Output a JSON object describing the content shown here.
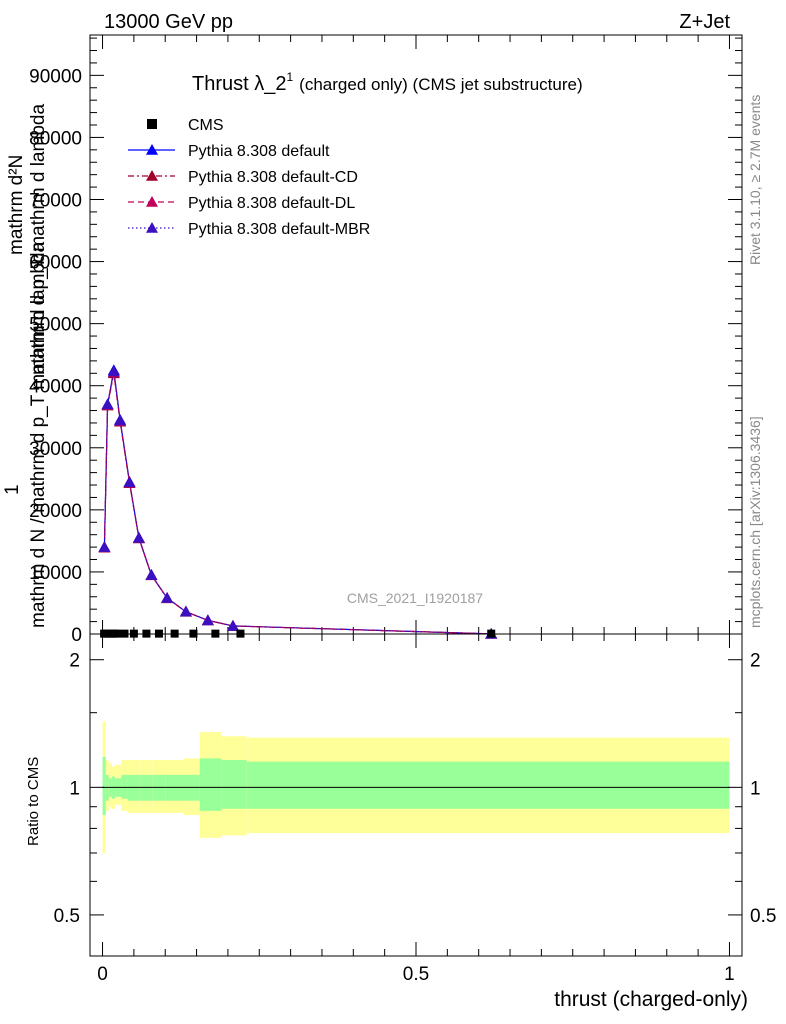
{
  "header": {
    "energy": "13000 GeV pp",
    "process": "Z+Jet"
  },
  "side_labels": {
    "rivet": "Rivet 3.1.10, ≥ 2.7M events",
    "mcplots": "mcplots.cern.ch [arXiv:1306.3436]"
  },
  "watermark": "CMS_2021_I1920187",
  "chart_data": [
    {
      "type": "line",
      "title_main": "Thrust λ_2",
      "title_sup": "1",
      "title_rest": "(charged only) (CMS jet substructure)",
      "ylabel_num": "1",
      "ylabel_den": "mathrm d N / mathrm d p_T mathrm d lambda",
      "ylabel_top": "mathrm d²N",
      "ylabel_bottom": "mathrm d p_T mathrm d lambda",
      "xlim": [
        -0.02,
        1.02
      ],
      "ylim": [
        0,
        96500
      ],
      "yticks": [
        0,
        10000,
        20000,
        30000,
        40000,
        50000,
        60000,
        70000,
        80000,
        90000
      ],
      "ytick_labels": [
        "0",
        "10000",
        "20000",
        "30000",
        "40000",
        "50000",
        "60000",
        "70000",
        "80000",
        "90000"
      ],
      "legend_position": "top-left",
      "legend": [
        {
          "label": "CMS",
          "marker": "square",
          "line": "none",
          "color": "#000000"
        },
        {
          "label": "Pythia 8.308 default",
          "marker": "triangle",
          "line": "solid",
          "color": "#0000ff"
        },
        {
          "label": "Pythia 8.308 default-CD",
          "marker": "triangle",
          "line": "dashdot",
          "color": "#a0002a"
        },
        {
          "label": "Pythia 8.308 default-DL",
          "marker": "triangle",
          "line": "dashed",
          "color": "#c0005a"
        },
        {
          "label": "Pythia 8.308 default-MBR",
          "marker": "triangle",
          "line": "dotted",
          "color": "#3a10c0"
        }
      ],
      "data_points": {
        "x": [
          0.0025,
          0.0075,
          0.0125,
          0.0175,
          0.0225,
          0.035,
          0.05,
          0.07,
          0.09,
          0.115,
          0.145,
          0.18,
          0.22,
          0.62
        ],
        "y": [
          60,
          60,
          60,
          60,
          60,
          60,
          60,
          60,
          60,
          60,
          60,
          60,
          60,
          60
        ]
      },
      "series": [
        {
          "name": "Pythia 8.308 default",
          "x": [
            0.003,
            0.008,
            0.018,
            0.028,
            0.043,
            0.058,
            0.078,
            0.103,
            0.133,
            0.168,
            0.208,
            0.62
          ],
          "y": [
            14000,
            37000,
            42500,
            34500,
            24500,
            15500,
            9500,
            5800,
            3600,
            2200,
            1300,
            20
          ]
        },
        {
          "name": "Pythia 8.308 default-CD",
          "x": [
            0.003,
            0.008,
            0.018,
            0.028,
            0.043,
            0.058,
            0.078,
            0.103,
            0.133,
            0.168,
            0.208,
            0.62
          ],
          "y": [
            13900,
            36800,
            42000,
            34200,
            24300,
            15400,
            9450,
            5750,
            3580,
            2190,
            1290,
            20
          ]
        },
        {
          "name": "Pythia 8.308 default-DL",
          "x": [
            0.003,
            0.008,
            0.018,
            0.028,
            0.043,
            0.058,
            0.078,
            0.103,
            0.133,
            0.168,
            0.208,
            0.62
          ],
          "y": [
            13950,
            36900,
            42200,
            34300,
            24400,
            15450,
            9480,
            5780,
            3590,
            2195,
            1295,
            20
          ]
        },
        {
          "name": "Pythia 8.308 default-MBR",
          "x": [
            0.003,
            0.008,
            0.018,
            0.028,
            0.043,
            0.058,
            0.078,
            0.103,
            0.133,
            0.168,
            0.208,
            0.62
          ],
          "y": [
            14000,
            37000,
            42300,
            34400,
            24450,
            15500,
            9500,
            5800,
            3600,
            2200,
            1300,
            20
          ]
        }
      ]
    },
    {
      "type": "area",
      "ylabel": "Ratio to CMS",
      "xlabel": "thrust (charged-only)",
      "xlim": [
        -0.02,
        1.02
      ],
      "ylim": [
        0.4,
        2.3
      ],
      "ytick_labels": [
        "0.5",
        "1",
        "2"
      ],
      "xtick_labels": [
        "0",
        "0.5",
        "1"
      ],
      "ratio_line": 1,
      "bands": [
        {
          "x0": 0.0,
          "x1": 0.005,
          "yellow": [
            0.7,
            1.43
          ],
          "green": [
            0.86,
            1.18
          ]
        },
        {
          "x0": 0.005,
          "x1": 0.01,
          "yellow": [
            0.88,
            1.16
          ],
          "green": [
            0.93,
            1.07
          ]
        },
        {
          "x0": 0.01,
          "x1": 0.015,
          "yellow": [
            0.9,
            1.14
          ],
          "green": [
            0.95,
            1.05
          ]
        },
        {
          "x0": 0.015,
          "x1": 0.02,
          "yellow": [
            0.89,
            1.12
          ],
          "green": [
            0.94,
            1.06
          ]
        },
        {
          "x0": 0.02,
          "x1": 0.03,
          "yellow": [
            0.91,
            1.13
          ],
          "green": [
            0.95,
            1.05
          ]
        },
        {
          "x0": 0.03,
          "x1": 0.04,
          "yellow": [
            0.88,
            1.16
          ],
          "green": [
            0.94,
            1.07
          ]
        },
        {
          "x0": 0.04,
          "x1": 0.06,
          "yellow": [
            0.87,
            1.16
          ],
          "green": [
            0.93,
            1.07
          ]
        },
        {
          "x0": 0.06,
          "x1": 0.08,
          "yellow": [
            0.87,
            1.16
          ],
          "green": [
            0.93,
            1.07
          ]
        },
        {
          "x0": 0.08,
          "x1": 0.1,
          "yellow": [
            0.87,
            1.16
          ],
          "green": [
            0.93,
            1.07
          ]
        },
        {
          "x0": 0.1,
          "x1": 0.13,
          "yellow": [
            0.87,
            1.16
          ],
          "green": [
            0.93,
            1.07
          ]
        },
        {
          "x0": 0.13,
          "x1": 0.155,
          "yellow": [
            0.86,
            1.17
          ],
          "green": [
            0.93,
            1.07
          ]
        },
        {
          "x0": 0.155,
          "x1": 0.19,
          "yellow": [
            0.76,
            1.35
          ],
          "green": [
            0.88,
            1.17
          ]
        },
        {
          "x0": 0.19,
          "x1": 0.23,
          "yellow": [
            0.77,
            1.32
          ],
          "green": [
            0.89,
            1.16
          ]
        },
        {
          "x0": 0.23,
          "x1": 1.0,
          "yellow": [
            0.78,
            1.31
          ],
          "green": [
            0.89,
            1.15
          ]
        }
      ]
    }
  ]
}
